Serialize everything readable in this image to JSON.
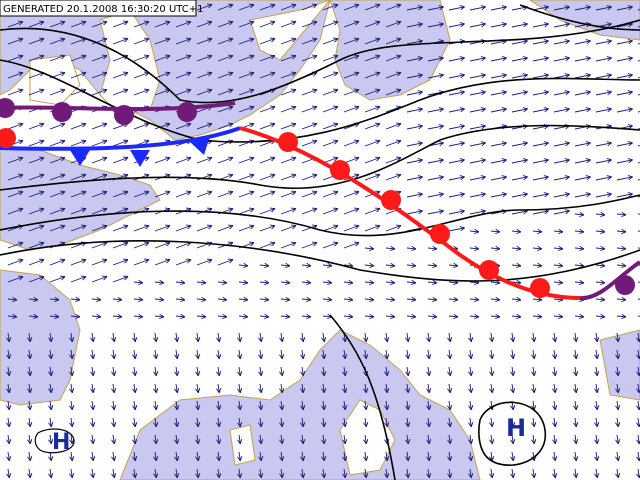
{
  "header": {
    "generated": "GENERATED 20.1.2008 16:30:20 UTC+1"
  },
  "pressure_centers": [
    {
      "label": "H"
    },
    {
      "label": "H"
    }
  ]
}
